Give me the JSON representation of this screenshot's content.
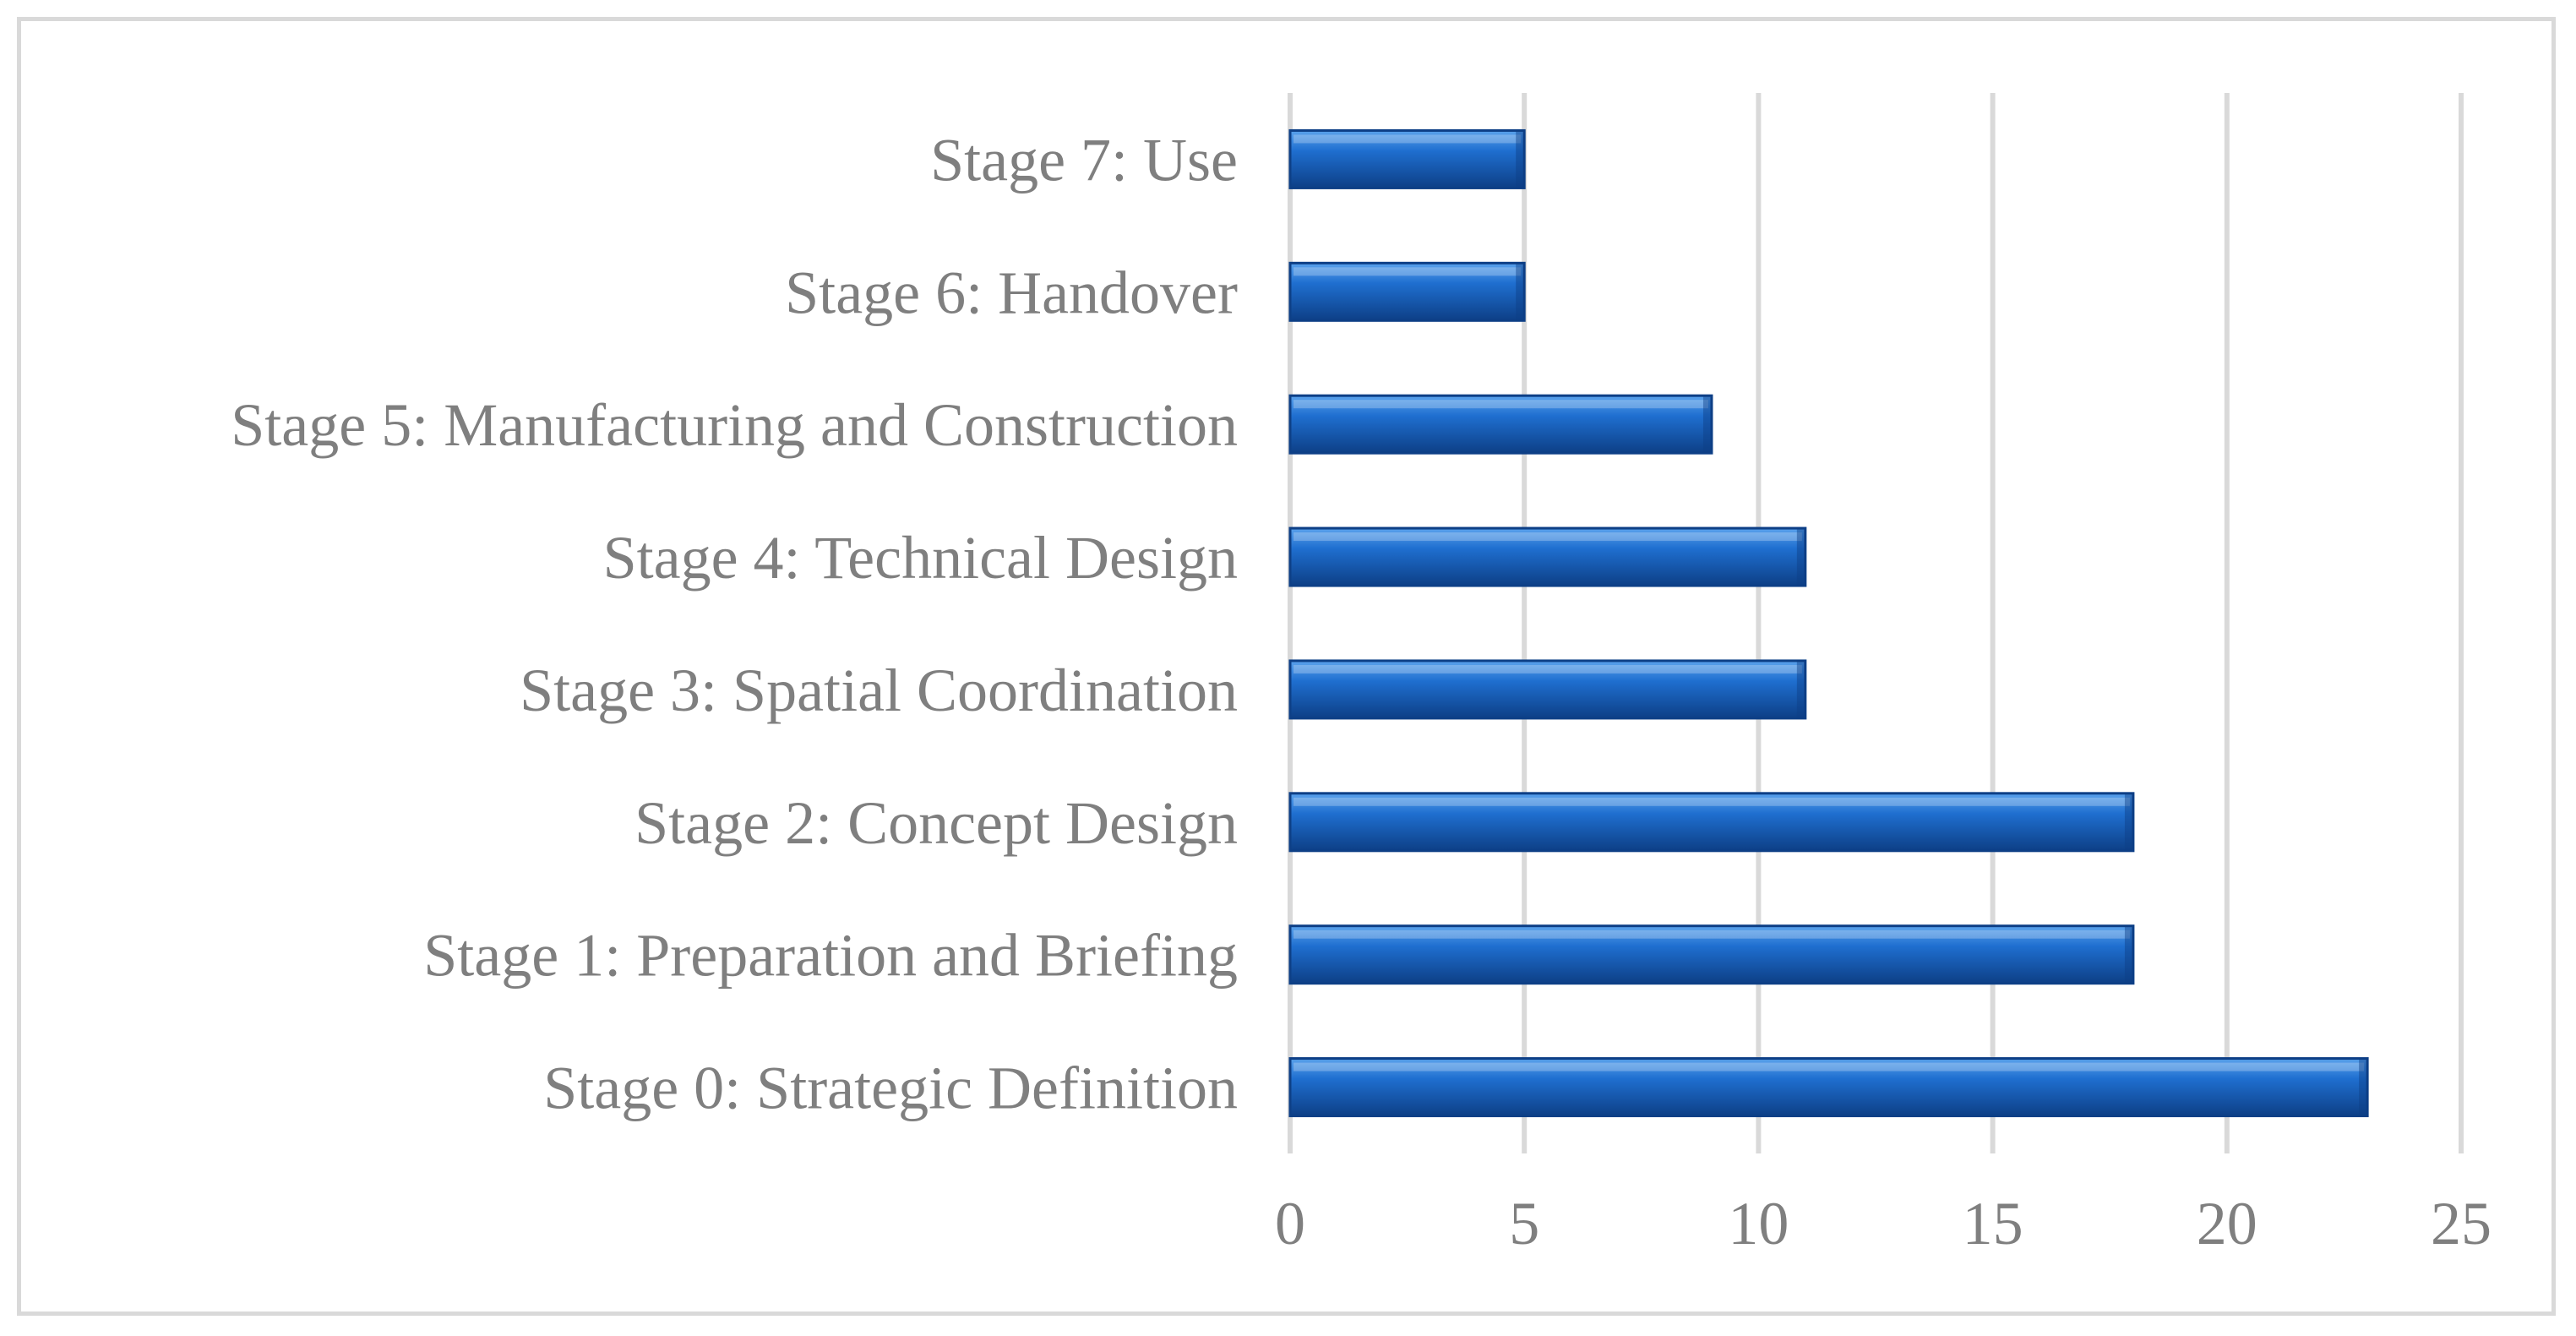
{
  "chart_data": {
    "type": "bar",
    "orientation": "horizontal",
    "title": "",
    "xlabel": "",
    "ylabel": "",
    "categories": [
      "Stage 0: Strategic Definition",
      "Stage 1: Preparation and Briefing",
      "Stage 2: Concept Design",
      "Stage 3: Spatial Coordination",
      "Stage 4: Technical Design",
      "Stage 5: Manufacturing and Construction",
      "Stage 6: Handover",
      "Stage 7: Use"
    ],
    "values": [
      23,
      18,
      18,
      11,
      11,
      9,
      5,
      5
    ],
    "xlim": [
      0,
      25
    ],
    "x_ticks": [
      "0",
      "5",
      "10",
      "15",
      "20",
      "25"
    ],
    "x_tick_values": [
      0,
      5,
      10,
      15,
      20,
      25
    ],
    "grid": "vertical",
    "legend": "none",
    "colors": {
      "bar": "#1f6fd0",
      "bar_light": "#5aa2ec",
      "bar_dark": "#0d3f86",
      "grid": "#d9d9d9",
      "text": "#7f7f7f",
      "frame": "#d9d9d9"
    }
  }
}
